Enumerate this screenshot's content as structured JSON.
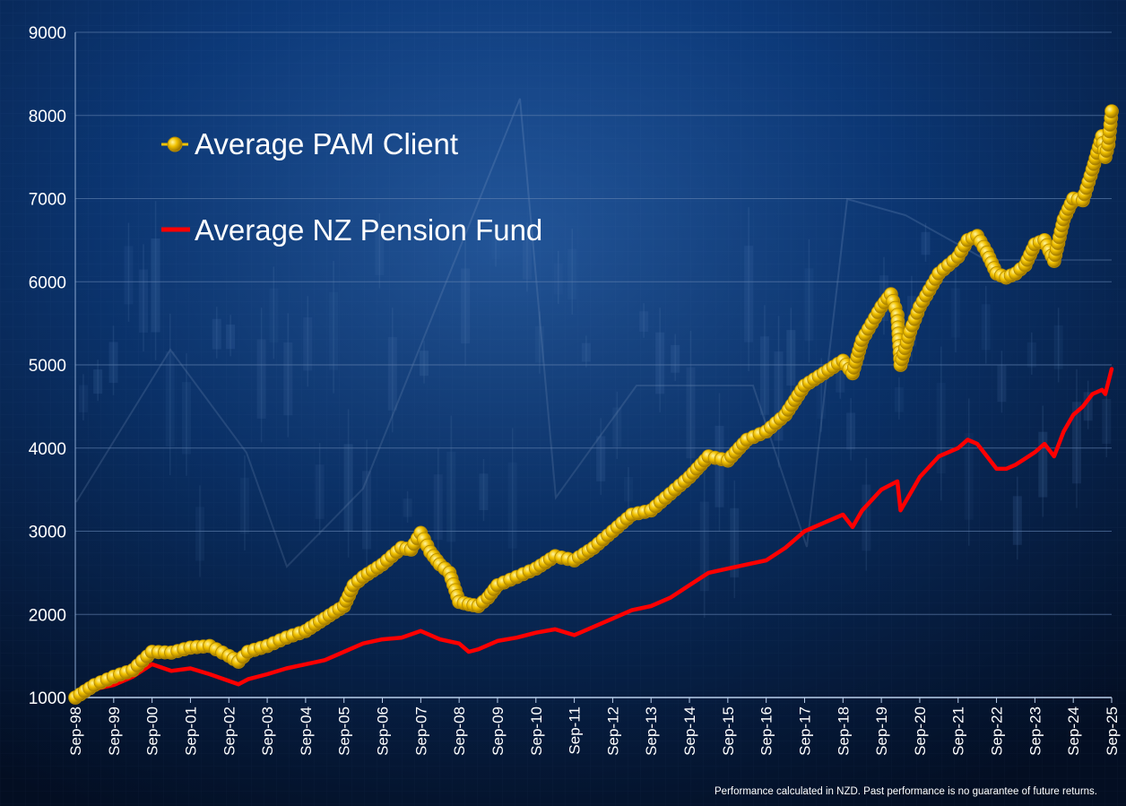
{
  "chart_data": {
    "type": "line",
    "title": "",
    "xlabel": "",
    "ylabel": "",
    "ylim": [
      1000,
      9000
    ],
    "y_ticks": [
      1000,
      2000,
      3000,
      4000,
      5000,
      6000,
      7000,
      8000,
      9000
    ],
    "x_ticks": [
      "Sep-98",
      "Sep-99",
      "Sep-00",
      "Sep-01",
      "Sep-02",
      "Sep-03",
      "Sep-04",
      "Sep-05",
      "Sep-06",
      "Sep-07",
      "Sep-08",
      "Sep-09",
      "Sep-10",
      "Sep-11",
      "Sep-12",
      "Sep-13",
      "Sep-14",
      "Sep-15",
      "Sep-16",
      "Sep-17",
      "Sep-18",
      "Sep-19",
      "Sep-20",
      "Sep-21",
      "Sep-22",
      "Sep-23",
      "Sep-24",
      "Sep-25"
    ],
    "grid": "horizontal",
    "legend_position": "top-left",
    "series": [
      {
        "name": "Average PAM Client",
        "color": "#f2c200",
        "marker": "circle",
        "points": [
          [
            "Sep-98",
            1000
          ],
          [
            "Mar-99",
            1150
          ],
          [
            "Sep-99",
            1250
          ],
          [
            "Mar-00",
            1330
          ],
          [
            "Sep-00",
            1550
          ],
          [
            "Mar-01",
            1540
          ],
          [
            "Sep-01",
            1600
          ],
          [
            "Mar-02",
            1620
          ],
          [
            "Sep-02",
            1500
          ],
          [
            "Dec-02",
            1430
          ],
          [
            "Mar-03",
            1550
          ],
          [
            "Sep-03",
            1620
          ],
          [
            "Mar-04",
            1720
          ],
          [
            "Sep-04",
            1800
          ],
          [
            "Mar-05",
            1950
          ],
          [
            "Sep-05",
            2100
          ],
          [
            "Dec-05",
            2350
          ],
          [
            "Mar-06",
            2450
          ],
          [
            "Sep-06",
            2600
          ],
          [
            "Mar-07",
            2800
          ],
          [
            "Jun-07",
            2780
          ],
          [
            "Sep-07",
            2980
          ],
          [
            "Dec-07",
            2750
          ],
          [
            "Mar-08",
            2600
          ],
          [
            "Jun-08",
            2500
          ],
          [
            "Sep-08",
            2150
          ],
          [
            "Dec-08",
            2120
          ],
          [
            "Mar-09",
            2100
          ],
          [
            "Jun-09",
            2200
          ],
          [
            "Sep-09",
            2350
          ],
          [
            "Mar-10",
            2450
          ],
          [
            "Sep-10",
            2550
          ],
          [
            "Mar-11",
            2700
          ],
          [
            "Sep-11",
            2650
          ],
          [
            "Mar-12",
            2800
          ],
          [
            "Sep-12",
            3000
          ],
          [
            "Mar-13",
            3200
          ],
          [
            "Sep-13",
            3250
          ],
          [
            "Mar-14",
            3450
          ],
          [
            "Sep-14",
            3650
          ],
          [
            "Mar-15",
            3900
          ],
          [
            "Sep-15",
            3850
          ],
          [
            "Mar-16",
            4100
          ],
          [
            "Sep-16",
            4200
          ],
          [
            "Mar-17",
            4400
          ],
          [
            "Sep-17",
            4750
          ],
          [
            "Mar-18",
            4900
          ],
          [
            "Sep-18",
            5050
          ],
          [
            "Dec-18",
            4900
          ],
          [
            "Mar-19",
            5300
          ],
          [
            "Sep-19",
            5700
          ],
          [
            "Dec-19",
            5850
          ],
          [
            "Feb-20",
            5600
          ],
          [
            "Mar-20",
            5000
          ],
          [
            "Jun-20",
            5400
          ],
          [
            "Sep-20",
            5700
          ],
          [
            "Mar-21",
            6100
          ],
          [
            "Sep-21",
            6300
          ],
          [
            "Dec-21",
            6500
          ],
          [
            "Mar-22",
            6550
          ],
          [
            "Jun-22",
            6350
          ],
          [
            "Sep-22",
            6100
          ],
          [
            "Dec-22",
            6050
          ],
          [
            "Mar-23",
            6100
          ],
          [
            "Jun-23",
            6200
          ],
          [
            "Sep-23",
            6450
          ],
          [
            "Dec-23",
            6500
          ],
          [
            "Mar-24",
            6250
          ],
          [
            "Jun-24",
            6750
          ],
          [
            "Sep-24",
            7000
          ],
          [
            "Dec-24",
            6980
          ],
          [
            "Mar-25",
            7350
          ],
          [
            "Jun-25",
            7750
          ],
          [
            "Jul-25",
            7500
          ],
          [
            "Aug-25",
            7650
          ],
          [
            "Sep-25",
            8050
          ]
        ]
      },
      {
        "name": "Average NZ Pension Fund",
        "color": "#ff0000",
        "marker": "none",
        "points": [
          [
            "Sep-98",
            1000
          ],
          [
            "Mar-99",
            1100
          ],
          [
            "Sep-99",
            1150
          ],
          [
            "Mar-00",
            1250
          ],
          [
            "Sep-00",
            1400
          ],
          [
            "Mar-01",
            1320
          ],
          [
            "Sep-01",
            1350
          ],
          [
            "Mar-02",
            1280
          ],
          [
            "Sep-02",
            1200
          ],
          [
            "Dec-02",
            1160
          ],
          [
            "Mar-03",
            1220
          ],
          [
            "Sep-03",
            1280
          ],
          [
            "Mar-04",
            1350
          ],
          [
            "Sep-04",
            1400
          ],
          [
            "Mar-05",
            1450
          ],
          [
            "Sep-05",
            1550
          ],
          [
            "Mar-06",
            1650
          ],
          [
            "Sep-06",
            1700
          ],
          [
            "Mar-07",
            1720
          ],
          [
            "Sep-07",
            1800
          ],
          [
            "Mar-08",
            1700
          ],
          [
            "Sep-08",
            1650
          ],
          [
            "Dec-08",
            1550
          ],
          [
            "Mar-09",
            1580
          ],
          [
            "Sep-09",
            1680
          ],
          [
            "Mar-10",
            1720
          ],
          [
            "Sep-10",
            1780
          ],
          [
            "Mar-11",
            1820
          ],
          [
            "Sep-11",
            1750
          ],
          [
            "Mar-12",
            1850
          ],
          [
            "Sep-12",
            1950
          ],
          [
            "Mar-13",
            2050
          ],
          [
            "Sep-13",
            2100
          ],
          [
            "Mar-14",
            2200
          ],
          [
            "Sep-14",
            2350
          ],
          [
            "Mar-15",
            2500
          ],
          [
            "Sep-15",
            2550
          ],
          [
            "Mar-16",
            2600
          ],
          [
            "Sep-16",
            2650
          ],
          [
            "Mar-17",
            2800
          ],
          [
            "Sep-17",
            3000
          ],
          [
            "Mar-18",
            3100
          ],
          [
            "Sep-18",
            3200
          ],
          [
            "Dec-18",
            3050
          ],
          [
            "Mar-19",
            3250
          ],
          [
            "Sep-19",
            3500
          ],
          [
            "Feb-20",
            3600
          ],
          [
            "Mar-20",
            3250
          ],
          [
            "Jun-20",
            3450
          ],
          [
            "Sep-20",
            3650
          ],
          [
            "Mar-21",
            3900
          ],
          [
            "Sep-21",
            4000
          ],
          [
            "Dec-21",
            4100
          ],
          [
            "Mar-22",
            4050
          ],
          [
            "Jun-22",
            3900
          ],
          [
            "Sep-22",
            3750
          ],
          [
            "Dec-22",
            3750
          ],
          [
            "Mar-23",
            3800
          ],
          [
            "Sep-23",
            3950
          ],
          [
            "Dec-23",
            4050
          ],
          [
            "Mar-24",
            3900
          ],
          [
            "Jun-24",
            4200
          ],
          [
            "Sep-24",
            4400
          ],
          [
            "Dec-24",
            4500
          ],
          [
            "Mar-25",
            4650
          ],
          [
            "Jun-25",
            4700
          ],
          [
            "Jul-25",
            4650
          ],
          [
            "Sep-25",
            4950
          ]
        ]
      }
    ]
  },
  "footnote": "Performance calculated in NZD.  Past performance is no guarantee of future returns.",
  "colors": {
    "background_dark": "#041534",
    "background_mid": "#0d3f86",
    "grid": "#5f7fae",
    "text": "#ffffff"
  }
}
